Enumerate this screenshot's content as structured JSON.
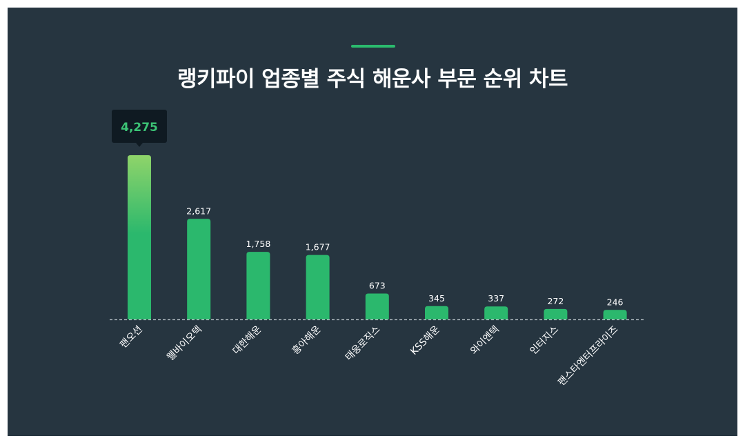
{
  "title": "랭키파이 업종별 주식 해운사 부문 순위 차트",
  "colors": {
    "background": "#263540",
    "accent": "#2bbb6e",
    "bar": "#2bb86d",
    "bar_top_gradient": "#8fd46a",
    "tooltip_bg": "#0f1a22",
    "tooltip_text": "#3cc476",
    "label_text": "#ffffff",
    "baseline": "#b8c2c8"
  },
  "chart_data": {
    "type": "bar",
    "title": "랭키파이 업종별 주식 해운사 부문 순위 차트",
    "xlabel": "",
    "ylabel": "",
    "categories": [
      "팬오션",
      "웰바이오텍",
      "대한해운",
      "흥아해운",
      "태웅로직스",
      "KSS해운",
      "와이엔텍",
      "인터지스",
      "팬스타엔터프라이즈"
    ],
    "values": [
      4275,
      2617,
      1758,
      1677,
      673,
      345,
      337,
      272,
      246
    ],
    "value_labels": [
      "4,275",
      "2,617",
      "1,758",
      "1,677",
      "673",
      "345",
      "337",
      "272",
      "246"
    ],
    "highlight_index": 0,
    "ylim": [
      0,
      4275
    ],
    "grid": false,
    "legend": "none"
  }
}
